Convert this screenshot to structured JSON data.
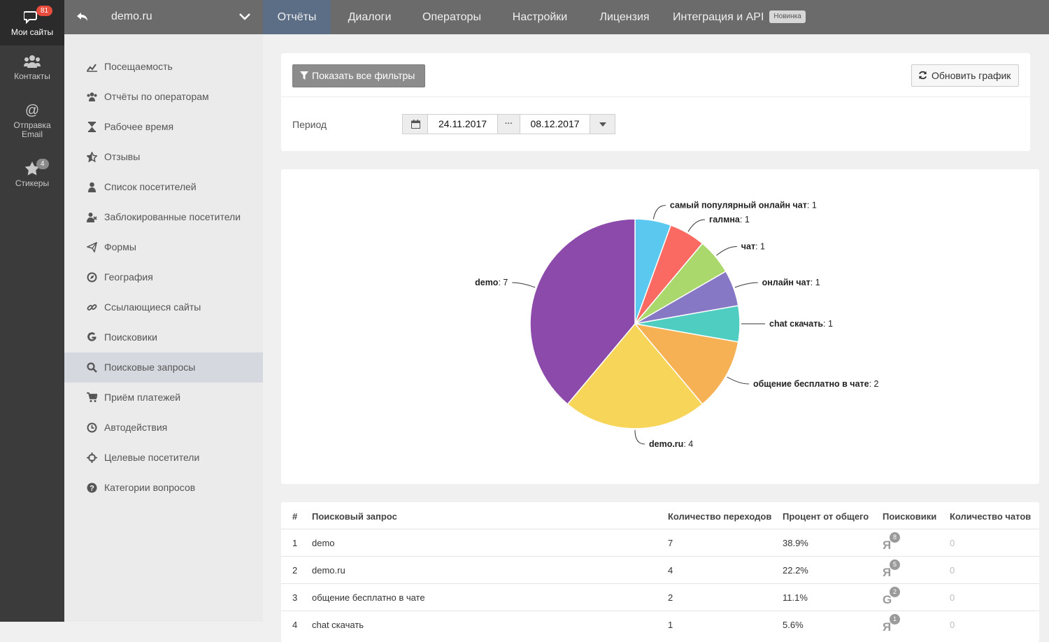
{
  "rail": {
    "sites": {
      "label": "Мои сайты",
      "badge": "81"
    },
    "contacts": {
      "label": "Контакты"
    },
    "email": {
      "label_line1": "Отправка",
      "label_line2": "Email"
    },
    "stickers": {
      "label": "Стикеры",
      "badge": "4"
    }
  },
  "topbar": {
    "site_name": "demo.ru",
    "tabs": [
      "Отчёты",
      "Диалоги",
      "Операторы",
      "Настройки",
      "Лицензия",
      "Интеграция и API"
    ],
    "new_badge": "Новинка",
    "active_tab": "Отчёты"
  },
  "sidebar": {
    "items": [
      {
        "label": "Посещаемость",
        "icon": "line-chart-icon"
      },
      {
        "label": "Отчёты по операторам",
        "icon": "users-icon"
      },
      {
        "label": "Рабочее время",
        "icon": "hourglass-icon"
      },
      {
        "label": "Отзывы",
        "icon": "star-half-icon"
      },
      {
        "label": "Список посетителей",
        "icon": "user-icon"
      },
      {
        "label": "Заблокированные посетители",
        "icon": "user-times-icon"
      },
      {
        "label": "Формы",
        "icon": "paper-plane-icon"
      },
      {
        "label": "География",
        "icon": "compass-icon"
      },
      {
        "label": "Ссылающиеся сайты",
        "icon": "link-icon"
      },
      {
        "label": "Поисковики",
        "icon": "google-icon"
      },
      {
        "label": "Поисковые запросы",
        "icon": "search-icon"
      },
      {
        "label": "Приём платежей",
        "icon": "cart-icon"
      },
      {
        "label": "Автодействия",
        "icon": "clock-icon"
      },
      {
        "label": "Целевые посетители",
        "icon": "crosshairs-icon"
      },
      {
        "label": "Категории вопросов",
        "icon": "question-circle-icon"
      }
    ],
    "active_index": 10
  },
  "filters": {
    "show_filters_label": "Показать все фильтры",
    "refresh_label": "Обновить график",
    "period_label": "Период",
    "date_from": "24.11.2017",
    "date_to": "08.12.2017",
    "range_sep": "···"
  },
  "chart_data": {
    "type": "pie",
    "start_angle_deg": 0,
    "slices": [
      {
        "label": "самый популярный онлайн чат",
        "value": 1,
        "color": "#5bc8ef"
      },
      {
        "label": "галмна",
        "value": 1,
        "color": "#fb6a62"
      },
      {
        "label": "чат",
        "value": 1,
        "color": "#abd86c"
      },
      {
        "label": "онлайн чат",
        "value": 1,
        "color": "#8678c4"
      },
      {
        "label": "chat скачать",
        "value": 1,
        "color": "#4ecdc0"
      },
      {
        "label": "общение бесплатно в чате",
        "value": 2,
        "color": "#f7b155"
      },
      {
        "label": "demo.ru",
        "value": 4,
        "color": "#f7d558"
      },
      {
        "label": "demo",
        "value": 7,
        "color": "#8c4aab"
      }
    ]
  },
  "table": {
    "headers": [
      "#",
      "Поисковый запрос",
      "Количество переходов",
      "Процент от общего",
      "Поисковики",
      "Количество чатов"
    ],
    "rows": [
      {
        "n": "1",
        "query": "demo",
        "clicks": "7",
        "percent": "38.9%",
        "engine": "yandex-icon",
        "engine_glyph": "Я",
        "engine_count": "8",
        "chats": "0"
      },
      {
        "n": "2",
        "query": "demo.ru",
        "clicks": "4",
        "percent": "22.2%",
        "engine": "yandex-icon",
        "engine_glyph": "Я",
        "engine_count": "5",
        "chats": "0"
      },
      {
        "n": "3",
        "query": "общение бесплатно в чате",
        "clicks": "2",
        "percent": "11.1%",
        "engine": "google-icon",
        "engine_glyph": "G",
        "engine_count": "2",
        "chats": "0"
      },
      {
        "n": "4",
        "query": "chat скачать",
        "clicks": "1",
        "percent": "5.6%",
        "engine": "yandex-icon",
        "engine_glyph": "Я",
        "engine_count": "1",
        "chats": "0"
      }
    ]
  }
}
